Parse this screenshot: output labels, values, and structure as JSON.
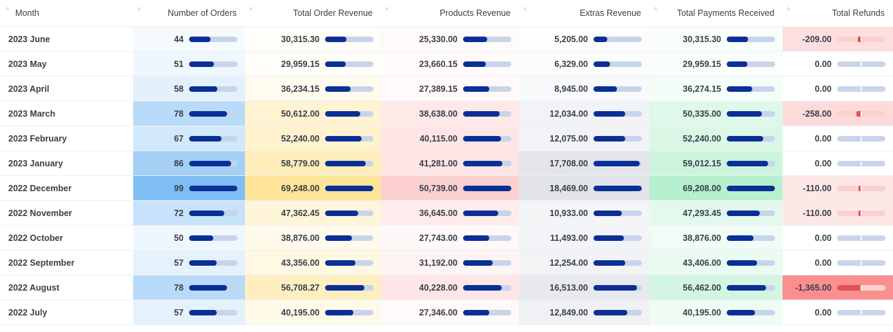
{
  "columns": [
    {
      "key": "month",
      "label": "Month"
    },
    {
      "key": "orders",
      "label": "Number of Orders"
    },
    {
      "key": "total_order_revenue",
      "label": "Total Order Revenue"
    },
    {
      "key": "products_revenue",
      "label": "Products Revenue"
    },
    {
      "key": "extras_revenue",
      "label": "Extras Revenue"
    },
    {
      "key": "payments_received",
      "label": "Total Payments Received"
    },
    {
      "key": "refunds",
      "label": "Total Refunds"
    }
  ],
  "rows": [
    {
      "month": "2023 June",
      "orders": "44",
      "total_order_revenue": "30,315.30",
      "products_revenue": "25,330.00",
      "extras_revenue": "5,205.00",
      "payments_received": "30,315.30",
      "refunds": "-209.00"
    },
    {
      "month": "2023 May",
      "orders": "51",
      "total_order_revenue": "29,959.15",
      "products_revenue": "23,660.15",
      "extras_revenue": "6,329.00",
      "payments_received": "29,959.15",
      "refunds": "0.00"
    },
    {
      "month": "2023 April",
      "orders": "58",
      "total_order_revenue": "36,234.15",
      "products_revenue": "27,389.15",
      "extras_revenue": "8,945.00",
      "payments_received": "36,274.15",
      "refunds": "0.00"
    },
    {
      "month": "2023 March",
      "orders": "78",
      "total_order_revenue": "50,612.00",
      "products_revenue": "38,638.00",
      "extras_revenue": "12,034.00",
      "payments_received": "50,335.00",
      "refunds": "-258.00"
    },
    {
      "month": "2023 February",
      "orders": "67",
      "total_order_revenue": "52,240.00",
      "products_revenue": "40,115.00",
      "extras_revenue": "12,075.00",
      "payments_received": "52,240.00",
      "refunds": "0.00"
    },
    {
      "month": "2023 January",
      "orders": "86",
      "total_order_revenue": "58,779.00",
      "products_revenue": "41,281.00",
      "extras_revenue": "17,708.00",
      "payments_received": "59,012.15",
      "refunds": "0.00"
    },
    {
      "month": "2022 December",
      "orders": "99",
      "total_order_revenue": "69,248.00",
      "products_revenue": "50,739.00",
      "extras_revenue": "18,469.00",
      "payments_received": "69,208.00",
      "refunds": "-110.00"
    },
    {
      "month": "2022 November",
      "orders": "72",
      "total_order_revenue": "47,362.45",
      "products_revenue": "36,645.00",
      "extras_revenue": "10,933.00",
      "payments_received": "47,293.45",
      "refunds": "-110.00"
    },
    {
      "month": "2022 October",
      "orders": "50",
      "total_order_revenue": "38,876.00",
      "products_revenue": "27,743.00",
      "extras_revenue": "11,493.00",
      "payments_received": "38,876.00",
      "refunds": "0.00"
    },
    {
      "month": "2022 September",
      "orders": "57",
      "total_order_revenue": "43,356.00",
      "products_revenue": "31,192.00",
      "extras_revenue": "12,254.00",
      "payments_received": "43,406.00",
      "refunds": "0.00"
    },
    {
      "month": "2022 August",
      "orders": "78",
      "total_order_revenue": "56,708.27",
      "products_revenue": "40,228.00",
      "extras_revenue": "16,513.00",
      "payments_received": "56,462.00",
      "refunds": "-1,365.00"
    },
    {
      "month": "2022 July",
      "orders": "57",
      "total_order_revenue": "40,195.00",
      "products_revenue": "27,346.00",
      "extras_revenue": "12,849.00",
      "payments_received": "40,195.00",
      "refunds": "0.00"
    }
  ],
  "colors": {
    "bar_fill": "#0a2f96",
    "bar_track": "#c8d4ea",
    "refund_fill": "#e15252",
    "refund_track": "#fbd0d0",
    "heat_orders": "#7fbdf5",
    "heat_total_order_revenue": "#ffe599",
    "heat_products_revenue": "#fdd0d0",
    "heat_extras_revenue": "#e2e4ea",
    "heat_payments_received": "#b6f0cf",
    "heat_refunds": "#fb8f8f"
  }
}
